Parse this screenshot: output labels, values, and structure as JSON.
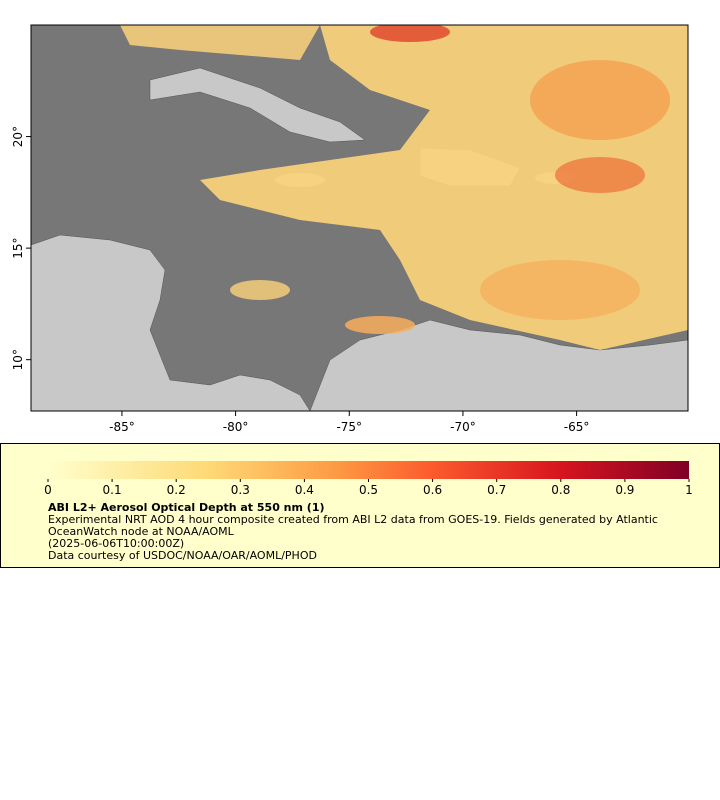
{
  "map": {
    "xlim": [
      -89,
      -60.1
    ],
    "ylim": [
      7.7,
      25.0
    ],
    "xticks": [
      {
        "value": -85,
        "label": "-85°"
      },
      {
        "value": -80,
        "label": "-80°"
      },
      {
        "value": -75,
        "label": "-75°"
      },
      {
        "value": -70,
        "label": "-70°"
      },
      {
        "value": -65,
        "label": "-65°"
      }
    ],
    "yticks": [
      {
        "value": 10,
        "label": "10°"
      },
      {
        "value": 15,
        "label": "15°"
      },
      {
        "value": 20,
        "label": "20°"
      }
    ]
  },
  "legend": {
    "clim": [
      0,
      1
    ],
    "ticks": [
      0,
      0.1,
      0.2,
      0.3,
      0.4,
      0.5,
      0.6,
      0.7,
      0.8,
      0.9,
      1
    ],
    "title": "ABI L2+ Aerosol Optical Depth at 550 nm (1)",
    "lines": [
      "Experimental NRT AOD 4 hour composite created from ABI L2 data from GOES-19. Fields generated by Atlantic",
      "OceanWatch node at NOAA/AOML",
      "(2025-06-06T10:00:00Z)",
      "Data courtesy of USDOC/NOAA/OAR/AOML/PHOD"
    ]
  }
}
